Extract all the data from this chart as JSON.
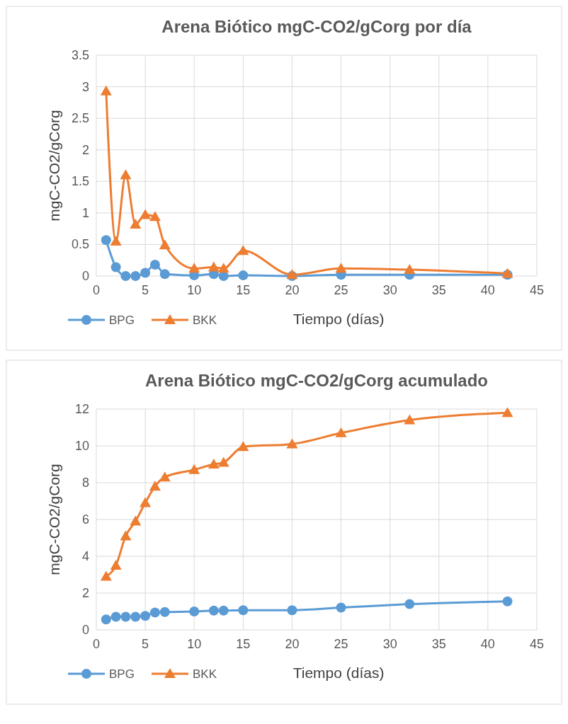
{
  "chart_data": [
    {
      "type": "line",
      "title": "Arena Biótico mgC-CO2/gCorg por día",
      "xlabel": "Tiempo (días)",
      "ylabel": "mgC-CO2/gCorg",
      "x": [
        1,
        2,
        3,
        4,
        5,
        6,
        7,
        10,
        12,
        13,
        15,
        20,
        25,
        32,
        42
      ],
      "series": [
        {
          "name": "BPG",
          "color": "#5b9bd5",
          "marker": "circle",
          "values": [
            0.57,
            0.14,
            0.0,
            0.0,
            0.05,
            0.18,
            0.03,
            0.01,
            0.03,
            0.0,
            0.01,
            0.0,
            0.02,
            0.02,
            0.02
          ]
        },
        {
          "name": "BKK",
          "color": "#ed7d31",
          "marker": "triangle",
          "values": [
            2.93,
            0.55,
            1.6,
            0.82,
            0.97,
            0.94,
            0.49,
            0.12,
            0.14,
            0.12,
            0.4,
            0.02,
            0.12,
            0.1,
            0.04
          ]
        }
      ],
      "xlim": [
        0,
        45
      ],
      "xticks": [
        0,
        5,
        10,
        15,
        20,
        25,
        30,
        35,
        40,
        45
      ],
      "ylim": [
        0,
        3.5
      ],
      "yticks": [
        0,
        0.5,
        1,
        1.5,
        2,
        2.5,
        3,
        3.5
      ],
      "grid": true,
      "legend": "bottom left"
    },
    {
      "type": "line",
      "title": "Arena Biótico mgC-CO2/gCorg acumulado",
      "xlabel": "Tiempo (días)",
      "ylabel": "mgC-CO2/gCorg",
      "x": [
        1,
        2,
        3,
        4,
        5,
        6,
        7,
        10,
        12,
        13,
        15,
        20,
        25,
        32,
        42
      ],
      "series": [
        {
          "name": "BPG",
          "color": "#5b9bd5",
          "marker": "circle",
          "values": [
            0.57,
            0.71,
            0.71,
            0.71,
            0.76,
            0.94,
            0.97,
            1.0,
            1.05,
            1.05,
            1.07,
            1.07,
            1.21,
            1.4,
            1.55
          ]
        },
        {
          "name": "BKK",
          "color": "#ed7d31",
          "marker": "triangle",
          "values": [
            2.9,
            3.5,
            5.1,
            5.9,
            6.9,
            7.8,
            8.3,
            8.7,
            9.0,
            9.1,
            9.95,
            10.1,
            10.7,
            11.4,
            11.8
          ]
        }
      ],
      "xlim": [
        0,
        45
      ],
      "xticks": [
        0,
        5,
        10,
        15,
        20,
        25,
        30,
        35,
        40,
        45
      ],
      "ylim": [
        0,
        12
      ],
      "yticks": [
        0,
        2,
        4,
        6,
        8,
        10,
        12
      ],
      "grid": true,
      "legend": "bottom left"
    }
  ]
}
